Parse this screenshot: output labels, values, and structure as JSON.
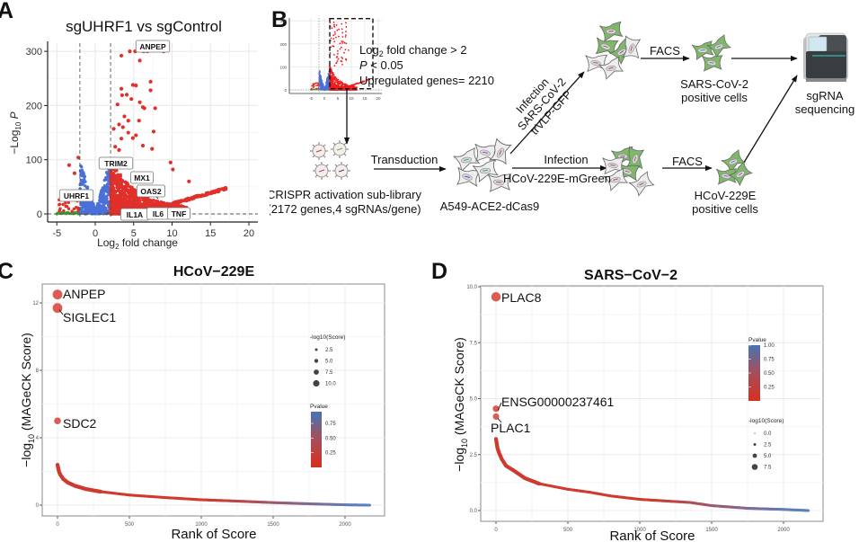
{
  "panels": {
    "A": {
      "letter": "A"
    },
    "B": {
      "letter": "B"
    },
    "C": {
      "letter": "C"
    },
    "D": {
      "letter": "D"
    }
  },
  "chart_data": [
    {
      "id": "A",
      "type": "scatter",
      "title": "sgUHRF1 vs sgControl",
      "xlabel": "Log2 fold change",
      "xlabel_main": "Log",
      "xlabel_sub": "2",
      "xlabel_rest": " fold change",
      "ylabel": "-Log10 P",
      "ylabel_main": "−Log",
      "ylabel_sub": "10",
      "ylabel_rest": " P",
      "xlim": [
        -6,
        21
      ],
      "ylim": [
        -10,
        315
      ],
      "xticks": [
        -5,
        0,
        5,
        10,
        15,
        20
      ],
      "yticks": [
        0,
        100,
        200,
        300
      ],
      "thresholds": {
        "fc": [
          -2,
          2
        ],
        "p": 0
      },
      "colors": {
        "up": "#e0302a",
        "ns_fc": "#4a70d9",
        "ns": "#3a9a2a",
        "grey": "#6a6a6a"
      },
      "labels": [
        {
          "gene": "ANPEP",
          "x": 5.8,
          "y": 300
        },
        {
          "gene": "TRIM2",
          "x": 3.5,
          "y": 85
        },
        {
          "gene": "MX1",
          "x": 5.0,
          "y": 78
        },
        {
          "gene": "OAS2",
          "x": 8.2,
          "y": 28
        },
        {
          "gene": "UHRF1",
          "x": -1.3,
          "y": 45
        },
        {
          "gene": "IL1A",
          "x": 6.6,
          "y": 7
        },
        {
          "gene": "IL6",
          "x": 8.4,
          "y": 12
        },
        {
          "gene": "TNF",
          "x": 9.8,
          "y": 12
        }
      ],
      "highlight_points": [
        {
          "x": 4.5,
          "y": 300
        },
        {
          "x": 5.2,
          "y": 300
        },
        {
          "x": 6.3,
          "y": 300
        },
        {
          "x": 6.8,
          "y": 300
        },
        {
          "x": 8.9,
          "y": 300
        },
        {
          "x": 3.4,
          "y": 292
        },
        {
          "x": 5.8,
          "y": 283
        },
        {
          "x": 7.2,
          "y": 244
        },
        {
          "x": 7.2,
          "y": 228
        },
        {
          "x": 4.9,
          "y": 238
        },
        {
          "x": 5.3,
          "y": 237
        },
        {
          "x": 3.4,
          "y": 231
        },
        {
          "x": 3.5,
          "y": 219
        },
        {
          "x": 4.1,
          "y": 220
        },
        {
          "x": 4.7,
          "y": 212
        },
        {
          "x": 5.8,
          "y": 206
        },
        {
          "x": 2.9,
          "y": 202
        },
        {
          "x": 6.2,
          "y": 197
        },
        {
          "x": 6.4,
          "y": 195
        },
        {
          "x": 7.8,
          "y": 195
        },
        {
          "x": 3.8,
          "y": 180
        },
        {
          "x": 4.3,
          "y": 172
        },
        {
          "x": 5.7,
          "y": 172
        },
        {
          "x": 3.1,
          "y": 165
        },
        {
          "x": 2.4,
          "y": 157
        },
        {
          "x": 3.6,
          "y": 160
        },
        {
          "x": 7.6,
          "y": 152
        },
        {
          "x": 4.3,
          "y": 150
        },
        {
          "x": 5.3,
          "y": 145
        },
        {
          "x": 3.4,
          "y": 139
        },
        {
          "x": 4.9,
          "y": 140
        },
        {
          "x": 2.6,
          "y": 124
        },
        {
          "x": 6.2,
          "y": 126
        },
        {
          "x": 7.4,
          "y": 120
        },
        {
          "x": 3.1,
          "y": 118
        },
        {
          "x": 9.8,
          "y": 95
        },
        {
          "x": 10.1,
          "y": 82
        },
        {
          "x": 12.2,
          "y": 60
        },
        {
          "x": -3.4,
          "y": 90
        },
        {
          "x": -2.7,
          "y": 75
        },
        {
          "x": -2.2,
          "y": 104
        },
        {
          "x": 2.6,
          "y": 100
        }
      ],
      "volcano_counts": {
        "upregulated": 2210
      }
    },
    {
      "id": "B_inset",
      "type": "scatter",
      "xticks": [
        -5,
        0,
        5,
        10,
        15,
        20
      ],
      "yticks": [
        0,
        100,
        200,
        300
      ],
      "box": {
        "x": [
          2,
          18
        ],
        "y": [
          5,
          310
        ]
      }
    },
    {
      "id": "C",
      "type": "scatter",
      "title": "HCoV−229E",
      "xlabel": "Rank of Score",
      "ylabel": "-log10 (MAGeCK Score)",
      "ylabel_main": "−log",
      "ylabel_sub": "10",
      "ylabel_rest": " (MAGeCK Score)",
      "xlim": [
        -100,
        2350
      ],
      "ylim": [
        -0.7,
        13.2
      ],
      "xticks": [
        0,
        500,
        1000,
        1500,
        2000
      ],
      "yticks": [
        0,
        4,
        8,
        12
      ],
      "ytick_labels": [
        "0",
        "4",
        "8",
        "12"
      ],
      "n_genes": 2172,
      "grid": true,
      "curve": [
        [
          0,
          2.4
        ],
        [
          5,
          2.2
        ],
        [
          10,
          2.0
        ],
        [
          20,
          1.8
        ],
        [
          40,
          1.55
        ],
        [
          70,
          1.35
        ],
        [
          120,
          1.15
        ],
        [
          200,
          0.95
        ],
        [
          300,
          0.8
        ],
        [
          500,
          0.6
        ],
        [
          750,
          0.45
        ],
        [
          1000,
          0.32
        ],
        [
          1250,
          0.24
        ],
        [
          1500,
          0.15
        ],
        [
          1750,
          0.08
        ],
        [
          2000,
          0.02
        ],
        [
          2172,
          0.0
        ]
      ],
      "labeled_points": [
        {
          "gene": "ANPEP",
          "x": 1,
          "y": 12.5,
          "size": 10.0
        },
        {
          "gene": "SIGLEC1",
          "x": 2,
          "y": 11.7,
          "size": 10.0
        },
        {
          "gene": "SDC2",
          "x": 3,
          "y": 5.0,
          "size": 5.0
        }
      ],
      "legend_size": {
        "title": "-log10(Score)",
        "entries": [
          "2.5",
          "5.0",
          "7.5",
          "10.0"
        ],
        "position": "right"
      },
      "legend_color": {
        "title": "Pvalue",
        "ticks": [
          "0.75",
          "0.50",
          "0.25"
        ],
        "low_color": "#d7301f",
        "high_color": "#4575b4",
        "position": "right"
      }
    },
    {
      "id": "D",
      "type": "scatter",
      "title": "SARS−CoV−2",
      "xlabel": "Rank of Score",
      "ylabel": "-log10 (MAGeCK Score)",
      "ylabel_main": "−log",
      "ylabel_sub": "10",
      "ylabel_rest": " (MAGeCK Score)",
      "xlim": [
        -100,
        2350
      ],
      "ylim": [
        -0.45,
        10.0
      ],
      "xticks": [
        0,
        500,
        1000,
        1500,
        2000
      ],
      "yticks": [
        0.0,
        2.5,
        5.0,
        7.5,
        10.0
      ],
      "ytick_labels": [
        "0.0",
        "2.5",
        "5.0",
        "7.5",
        "10.0"
      ],
      "n_genes": 2172,
      "grid": true,
      "curve": [
        [
          0,
          3.2
        ],
        [
          5,
          3.0
        ],
        [
          10,
          2.8
        ],
        [
          20,
          2.6
        ],
        [
          40,
          2.3
        ],
        [
          70,
          2.0
        ],
        [
          120,
          1.8
        ],
        [
          200,
          1.45
        ],
        [
          300,
          1.2
        ],
        [
          500,
          0.95
        ],
        [
          650,
          0.82
        ],
        [
          800,
          0.65
        ],
        [
          1000,
          0.5
        ],
        [
          1200,
          0.42
        ],
        [
          1350,
          0.36
        ],
        [
          1500,
          0.22
        ],
        [
          1750,
          0.1
        ],
        [
          2000,
          0.05
        ],
        [
          2172,
          0.0
        ]
      ],
      "labeled_points": [
        {
          "gene": "PLAC8",
          "x": 1,
          "y": 9.55,
          "size": 9.5
        },
        {
          "gene": "ENSG00000237461",
          "x": 2,
          "y": 4.55,
          "size": 4.5
        },
        {
          "gene": "PLAC1",
          "x": 3,
          "y": 4.2,
          "size": 4.2
        }
      ],
      "legend_color": {
        "title": "Pvalue",
        "ticks": [
          "1.00",
          "0.75",
          "0.50",
          "0.25"
        ],
        "low_color": "#d7301f",
        "high_color": "#4575b4",
        "position": "right"
      },
      "legend_size": {
        "title": "-log10(Score)",
        "entries": [
          "0.0",
          "2.5",
          "5.0",
          "7.5"
        ],
        "position": "right"
      }
    }
  ],
  "workflow": {
    "inset_text": {
      "line1_main": "Log",
      "line1_sub": "2",
      "line1_rest": " fold change > 2",
      "line2_italic": "P",
      "line2_rest": " < 0.05",
      "line3": "Upregulated genes= 2210"
    },
    "library_label_1": "CRISPR activation sub-library",
    "library_label_2": "(2172 genes,4 sgRNAs/gene)",
    "transduction_label": "Transduction",
    "cell_line_label": "A549-ACE2-dCas9",
    "infection_top_1": "Infection",
    "infection_top_2": "SARS-CoV-2",
    "infection_top_3": "trVLP-GFP",
    "infection_bottom_1": "Infection",
    "infection_bottom_2": "HCoV-229E-mGreen",
    "facs_top": "FACS",
    "facs_bottom": "FACS",
    "sars_positive_1": "SARS-CoV-2",
    "sars_positive_2": "positive cells",
    "hcov_positive_1": "HCoV-229E",
    "hcov_positive_2": "positive cells",
    "sequencing_1": "sgRNA",
    "sequencing_2": "sequencing",
    "colors": {
      "infected_cell": "#7fb86a",
      "uninfected_cell": "#eeeeee",
      "cell_border": "#666666"
    }
  }
}
